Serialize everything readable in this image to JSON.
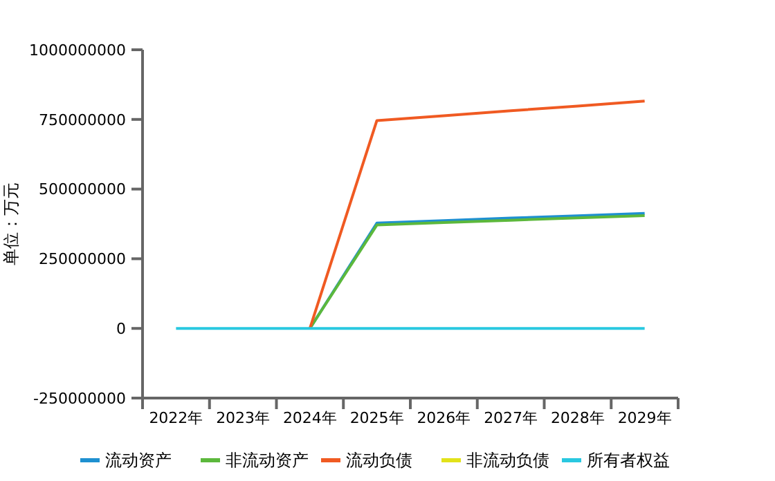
{
  "chart_data": {
    "type": "line",
    "ylabel": "单位：万元",
    "categories": [
      "2022年",
      "2023年",
      "2024年",
      "2025年",
      "2026年",
      "2027年",
      "2028年",
      "2029年"
    ],
    "ylim": [
      -250000000,
      1000000000
    ],
    "yticks": [
      -250000000,
      0,
      250000000,
      500000000,
      750000000,
      1000000000
    ],
    "grid": false,
    "legend": "bottom",
    "marker": "none",
    "series": [
      {
        "name": "流动资产",
        "color": "#1e90d0",
        "values": [
          null,
          null,
          0,
          378000000,
          387000000,
          396000000,
          404000000,
          413000000
        ]
      },
      {
        "name": "非流动资产",
        "color": "#5cb83c",
        "values": [
          null,
          null,
          0,
          371000000,
          380000000,
          388000000,
          397000000,
          405000000
        ]
      },
      {
        "name": "流动负债",
        "color": "#f05a22",
        "values": [
          null,
          null,
          0,
          746000000,
          763000000,
          781000000,
          798000000,
          816000000
        ]
      },
      {
        "name": "非流动负债",
        "color": "#e2e21a",
        "values": [
          null,
          null,
          null,
          null,
          null,
          null,
          null,
          null
        ]
      },
      {
        "name": "所有者权益",
        "color": "#29c8e0",
        "values": [
          0,
          0,
          0,
          0,
          0,
          0,
          0,
          0
        ]
      }
    ]
  }
}
